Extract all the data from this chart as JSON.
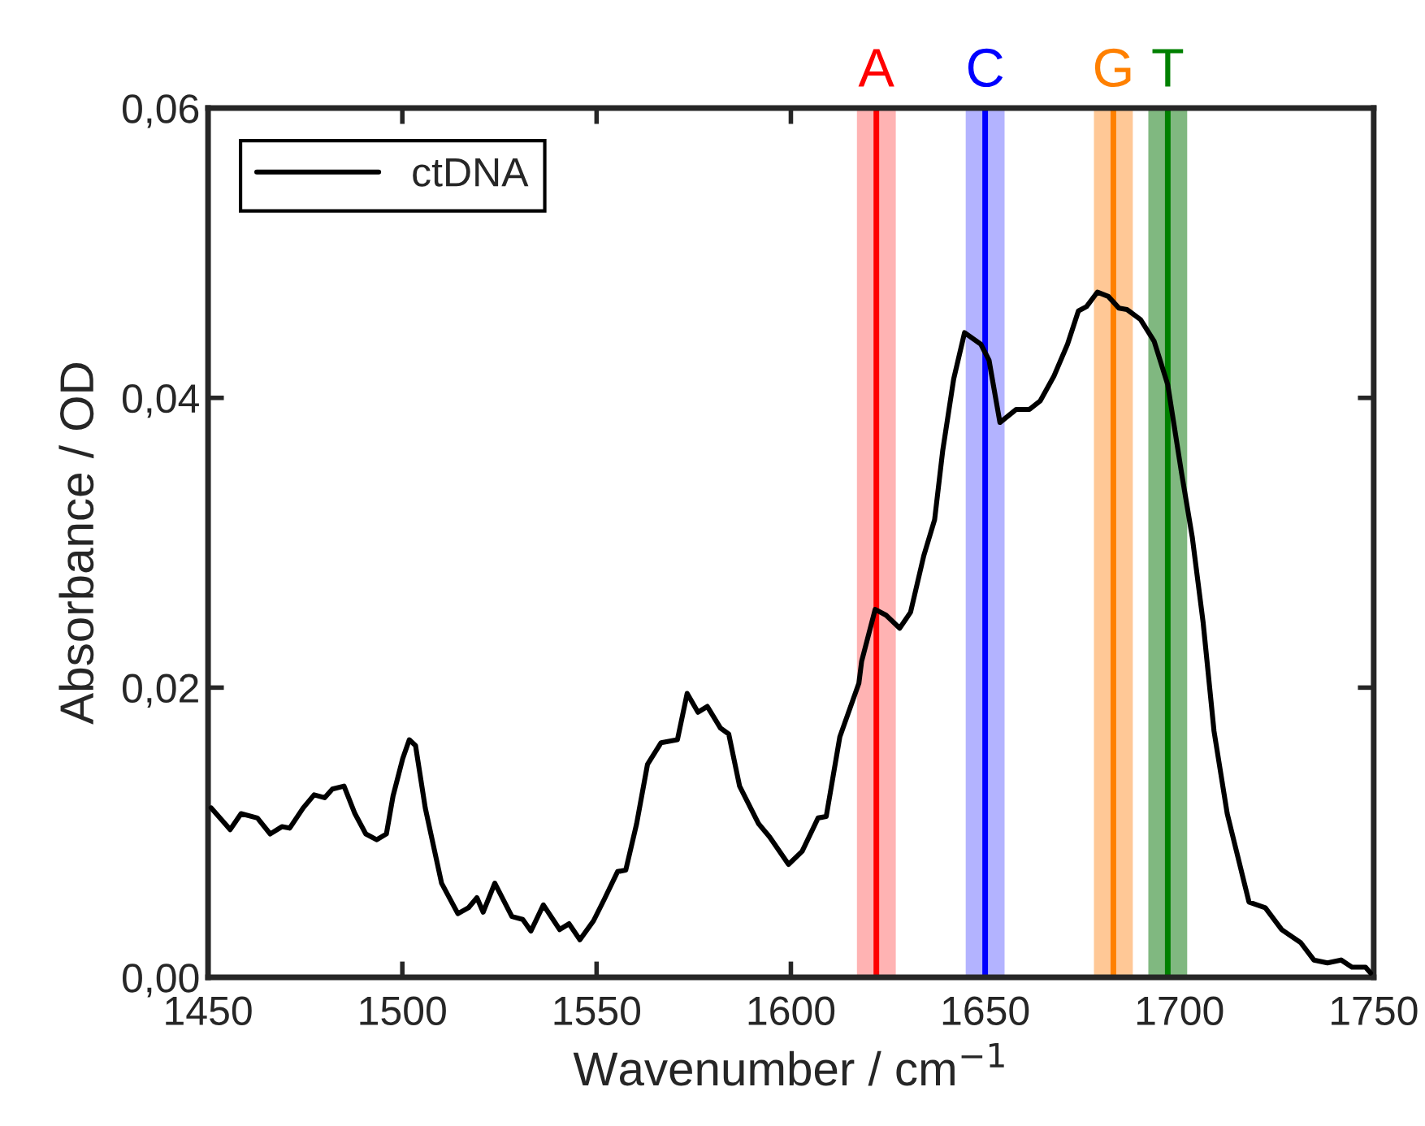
{
  "chart_data": {
    "type": "line",
    "xlabel": "Wavenumber / cm$^{−1}$",
    "ylabel": "Absorbance / OD",
    "xlim": [
      1450,
      1750
    ],
    "ylim": [
      0,
      0.06
    ],
    "xticks": [
      1450,
      1500,
      1550,
      1600,
      1650,
      1700,
      1750
    ],
    "yticks": [
      {
        "value": 0,
        "label": "0,00"
      },
      {
        "value": 0.02,
        "label": "0,02"
      },
      {
        "value": 0.04,
        "label": "0,04"
      },
      {
        "value": 0.06,
        "label": "0,06"
      }
    ],
    "grid": false,
    "legend": "top left",
    "marker": "none",
    "line_style": "solid",
    "series": [
      {
        "name": "ctDNA",
        "color": "#000000",
        "x": [
          1450.8,
          1455.7,
          1458.5,
          1462.7,
          1466,
          1469,
          1471,
          1474.5,
          1477.3,
          1480,
          1482,
          1485,
          1487.8,
          1490.6,
          1493.4,
          1495.9,
          1497.6,
          1500.1,
          1501.8,
          1503.4,
          1505.9,
          1510.1,
          1514.3,
          1517,
          1519.2,
          1520.8,
          1523.8,
          1528.2,
          1531,
          1533.1,
          1536.3,
          1540.5,
          1542.9,
          1545.7,
          1549.2,
          1552,
          1555.4,
          1557.5,
          1560.3,
          1563.1,
          1566.6,
          1570.8,
          1573.3,
          1576.1,
          1578.5,
          1581.9,
          1584,
          1586.8,
          1591.7,
          1594.5,
          1599.4,
          1602.9,
          1607,
          1609.1,
          1612.6,
          1617.5,
          1618.2,
          1621.7,
          1624.5,
          1628,
          1630.8,
          1634.2,
          1637,
          1639.1,
          1641.9,
          1644.7,
          1648.9,
          1651,
          1653.8,
          1658,
          1661.4,
          1664.2,
          1667.7,
          1671.2,
          1674,
          1676.1,
          1678.9,
          1681.7,
          1684.4,
          1686.5,
          1690,
          1693.5,
          1697,
          1700.5,
          1703.3,
          1706.1,
          1708.9,
          1712.3,
          1717.9,
          1722.1,
          1726.3,
          1731.2,
          1734.6,
          1738.1,
          1741.6,
          1744.4,
          1747.9,
          1749.2
        ],
        "values": [
          0.0117,
          0.0102,
          0.0113,
          0.011,
          0.0099,
          0.0104,
          0.0103,
          0.0117,
          0.0126,
          0.0124,
          0.013,
          0.0132,
          0.0113,
          0.0099,
          0.0095,
          0.0099,
          0.0125,
          0.0151,
          0.0164,
          0.016,
          0.0117,
          0.0065,
          0.0044,
          0.0048,
          0.0055,
          0.0045,
          0.0065,
          0.0042,
          0.004,
          0.0032,
          0.005,
          0.0033,
          0.0037,
          0.0026,
          0.0039,
          0.0054,
          0.0073,
          0.0074,
          0.0106,
          0.0147,
          0.0162,
          0.0164,
          0.0196,
          0.0183,
          0.0187,
          0.0172,
          0.0168,
          0.0132,
          0.0106,
          0.0097,
          0.0078,
          0.0087,
          0.011,
          0.0111,
          0.0166,
          0.0203,
          0.0218,
          0.0254,
          0.025,
          0.0241,
          0.0252,
          0.0291,
          0.0316,
          0.0364,
          0.0413,
          0.0445,
          0.0437,
          0.0426,
          0.0383,
          0.0392,
          0.0392,
          0.0398,
          0.0415,
          0.0437,
          0.046,
          0.0463,
          0.0473,
          0.047,
          0.0462,
          0.0461,
          0.0454,
          0.0439,
          0.0409,
          0.0349,
          0.0304,
          0.0245,
          0.017,
          0.0113,
          0.0052,
          0.0048,
          0.0033,
          0.0024,
          0.0012,
          0.001,
          0.0012,
          0.0007,
          0.0007,
          0.0003
        ]
      }
    ],
    "bands": [
      {
        "axis": "x",
        "from": 1617,
        "to": 1627,
        "color": "#ffb3b3"
      },
      {
        "axis": "x",
        "from": 1645,
        "to": 1655,
        "color": "#b3b3ff"
      },
      {
        "axis": "x",
        "from": 1678,
        "to": 1688,
        "color": "#ffc896"
      },
      {
        "axis": "x",
        "from": 1692,
        "to": 1702,
        "color": "#80b880"
      }
    ],
    "ref_lines": [
      {
        "axis": "x",
        "value": 1622,
        "label": "A",
        "color": "#ff0000",
        "line_style": "solid"
      },
      {
        "axis": "x",
        "value": 1650,
        "label": "C",
        "color": "#0000ff",
        "line_style": "solid"
      },
      {
        "axis": "x",
        "value": 1683,
        "label": "G",
        "color": "#ff8000",
        "line_style": "solid"
      },
      {
        "axis": "x",
        "value": 1697,
        "label": "T",
        "color": "#008000",
        "line_style": "solid"
      }
    ]
  }
}
